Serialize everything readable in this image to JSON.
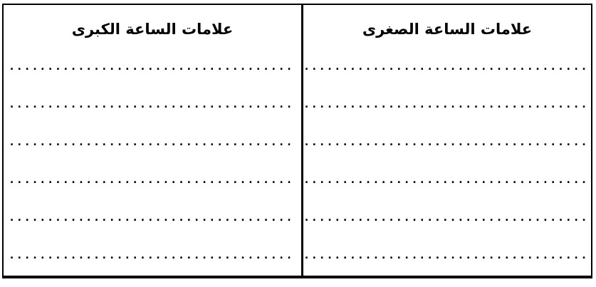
{
  "table": {
    "columns": [
      {
        "id": "major-signs",
        "header": "علامات الساعة الكبرى",
        "rows": [
          ".....................................",
          ".....................................",
          ".....................................",
          ".....................................",
          ".....................................",
          "....................................."
        ]
      },
      {
        "id": "minor-signs",
        "header": "علامات الساعة الصغرى",
        "rows": [
          ".....................................",
          ".....................................",
          ".....................................",
          ".....................................",
          ".....................................",
          "....................................."
        ]
      }
    ]
  },
  "colors": {
    "border": "#000000",
    "text": "#000000",
    "background": "#ffffff"
  }
}
